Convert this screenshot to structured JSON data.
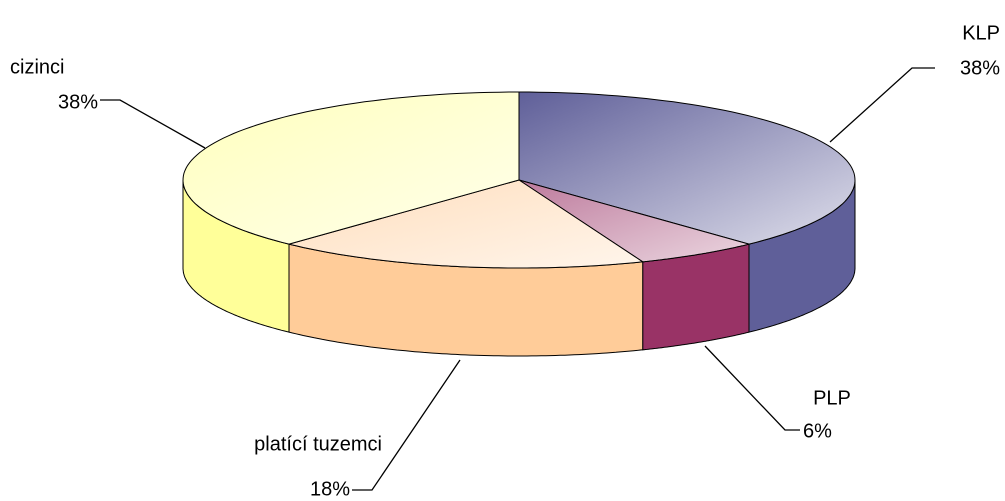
{
  "chart_data": {
    "type": "pie3d",
    "categories": [
      "KLP",
      "PLP",
      "platící tuzemci",
      "cizinci"
    ],
    "values": [
      38,
      6,
      18,
      38
    ],
    "value_labels": [
      "38%",
      "6%",
      "18%",
      "38%"
    ],
    "colors": [
      "#5f5f99",
      "#993366",
      "#ffcc99",
      "#ffff99"
    ]
  }
}
